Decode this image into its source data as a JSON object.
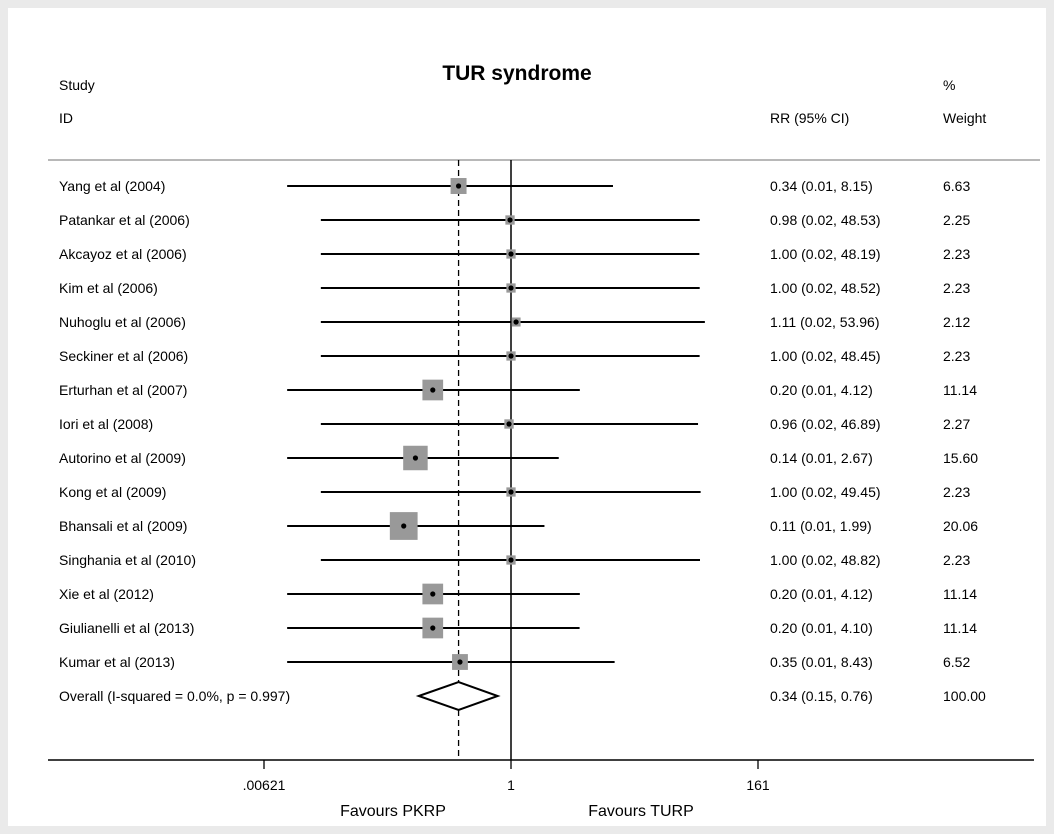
{
  "chart_data": {
    "type": "forest",
    "title": "TUR syndrome",
    "columns": {
      "study_header_1": "Study",
      "study_header_2": "ID",
      "effect_header": "RR (95% CI)",
      "weight_header_1": "%",
      "weight_header_2": "Weight"
    },
    "rows": [
      {
        "study": "Yang et al (2004)",
        "rr": 0.34,
        "lo": 0.01,
        "hi": 8.15,
        "ci_text": "0.34 (0.01, 8.15)",
        "weight": "6.63"
      },
      {
        "study": "Patankar et al (2006)",
        "rr": 0.98,
        "lo": 0.02,
        "hi": 48.53,
        "ci_text": "0.98 (0.02, 48.53)",
        "weight": "2.25"
      },
      {
        "study": "Akcayoz et al (2006)",
        "rr": 1.0,
        "lo": 0.02,
        "hi": 48.19,
        "ci_text": "1.00 (0.02, 48.19)",
        "weight": "2.23"
      },
      {
        "study": "Kim et al (2006)",
        "rr": 1.0,
        "lo": 0.02,
        "hi": 48.52,
        "ci_text": "1.00 (0.02, 48.52)",
        "weight": "2.23"
      },
      {
        "study": "Nuhoglu et al (2006)",
        "rr": 1.11,
        "lo": 0.02,
        "hi": 53.96,
        "ci_text": "1.11 (0.02, 53.96)",
        "weight": "2.12"
      },
      {
        "study": "Seckiner et al (2006)",
        "rr": 1.0,
        "lo": 0.02,
        "hi": 48.45,
        "ci_text": "1.00 (0.02, 48.45)",
        "weight": "2.23"
      },
      {
        "study": "Erturhan et al (2007)",
        "rr": 0.2,
        "lo": 0.01,
        "hi": 4.12,
        "ci_text": "0.20 (0.01, 4.12)",
        "weight": "11.14"
      },
      {
        "study": "Iori et al (2008)",
        "rr": 0.96,
        "lo": 0.02,
        "hi": 46.89,
        "ci_text": "0.96 (0.02, 46.89)",
        "weight": "2.27"
      },
      {
        "study": "Autorino et al (2009)",
        "rr": 0.14,
        "lo": 0.01,
        "hi": 2.67,
        "ci_text": "0.14 (0.01, 2.67)",
        "weight": "15.60"
      },
      {
        "study": "Kong et al (2009)",
        "rr": 1.0,
        "lo": 0.02,
        "hi": 49.45,
        "ci_text": "1.00 (0.02, 49.45)",
        "weight": "2.23"
      },
      {
        "study": "Bhansali et al (2009)",
        "rr": 0.11,
        "lo": 0.01,
        "hi": 1.99,
        "ci_text": "0.11 (0.01, 1.99)",
        "weight": "20.06"
      },
      {
        "study": "Singhania et al (2010)",
        "rr": 1.0,
        "lo": 0.02,
        "hi": 48.82,
        "ci_text": "1.00 (0.02, 48.82)",
        "weight": "2.23"
      },
      {
        "study": "Xie et al  (2012)",
        "rr": 0.2,
        "lo": 0.01,
        "hi": 4.12,
        "ci_text": "0.20 (0.01, 4.12)",
        "weight": "11.14"
      },
      {
        "study": "Giulianelli et al (2013)",
        "rr": 0.2,
        "lo": 0.01,
        "hi": 4.1,
        "ci_text": "0.20 (0.01, 4.10)",
        "weight": "11.14"
      },
      {
        "study": "Kumar et al (2013)",
        "rr": 0.35,
        "lo": 0.01,
        "hi": 8.43,
        "ci_text": "0.35 (0.01, 8.43)",
        "weight": "6.52"
      }
    ],
    "overall": {
      "label": "Overall  (I-squared = 0.0%, p = 0.997)",
      "rr": 0.34,
      "lo": 0.15,
      "hi": 0.76,
      "ci_text": "0.34 (0.15, 0.76)",
      "weight": "100.00"
    },
    "x_axis": {
      "scale": "log",
      "ticks": [
        {
          "value": 0.00621,
          "label": ".00621"
        },
        {
          "value": 1,
          "label": "1"
        },
        {
          "value": 161,
          "label": "161"
        }
      ],
      "range": [
        0.00621,
        161
      ]
    },
    "null_line": 1,
    "pooled_reference_line": 0.34,
    "footer_left": "Favours PKRP",
    "footer_right": "Favours TURP",
    "colors": {
      "marker_box": "#999999",
      "line": "#000000",
      "background": "#ffffff",
      "outer_background": "#eaeaea"
    }
  }
}
